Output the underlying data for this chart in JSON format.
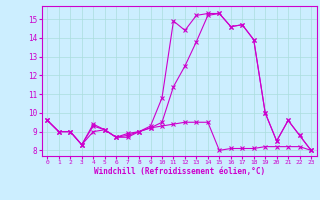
{
  "xlabel": "Windchill (Refroidissement éolien,°C)",
  "bg_color": "#cceeff",
  "grid_color": "#aadddd",
  "line_color": "#cc00cc",
  "xlim": [
    -0.5,
    23.5
  ],
  "ylim": [
    7.7,
    15.7
  ],
  "yticks": [
    8,
    9,
    10,
    11,
    12,
    13,
    14,
    15
  ],
  "xticks": [
    0,
    1,
    2,
    3,
    4,
    5,
    6,
    7,
    8,
    9,
    10,
    11,
    12,
    13,
    14,
    15,
    16,
    17,
    18,
    19,
    20,
    21,
    22,
    23
  ],
  "series": {
    "line1": [
      9.6,
      9.0,
      9.0,
      8.3,
      9.4,
      9.1,
      8.7,
      8.8,
      9.0,
      9.3,
      10.8,
      14.9,
      14.4,
      15.2,
      15.3,
      15.3,
      14.6,
      14.7,
      13.9,
      10.0,
      8.5,
      9.6,
      8.8,
      8.0
    ],
    "line2": [
      9.6,
      9.0,
      9.0,
      8.3,
      9.3,
      9.1,
      8.7,
      8.9,
      9.0,
      9.2,
      9.5,
      11.4,
      12.5,
      13.8,
      15.2,
      15.3,
      14.6,
      14.7,
      13.9,
      10.0,
      8.5,
      9.6,
      8.8,
      8.0
    ],
    "line3": [
      9.6,
      9.0,
      9.0,
      8.3,
      9.0,
      9.1,
      8.7,
      8.7,
      9.0,
      9.2,
      9.3,
      9.4,
      9.5,
      9.5,
      9.5,
      8.0,
      8.1,
      8.1,
      8.1,
      8.2,
      8.2,
      8.2,
      8.2,
      8.0
    ]
  }
}
